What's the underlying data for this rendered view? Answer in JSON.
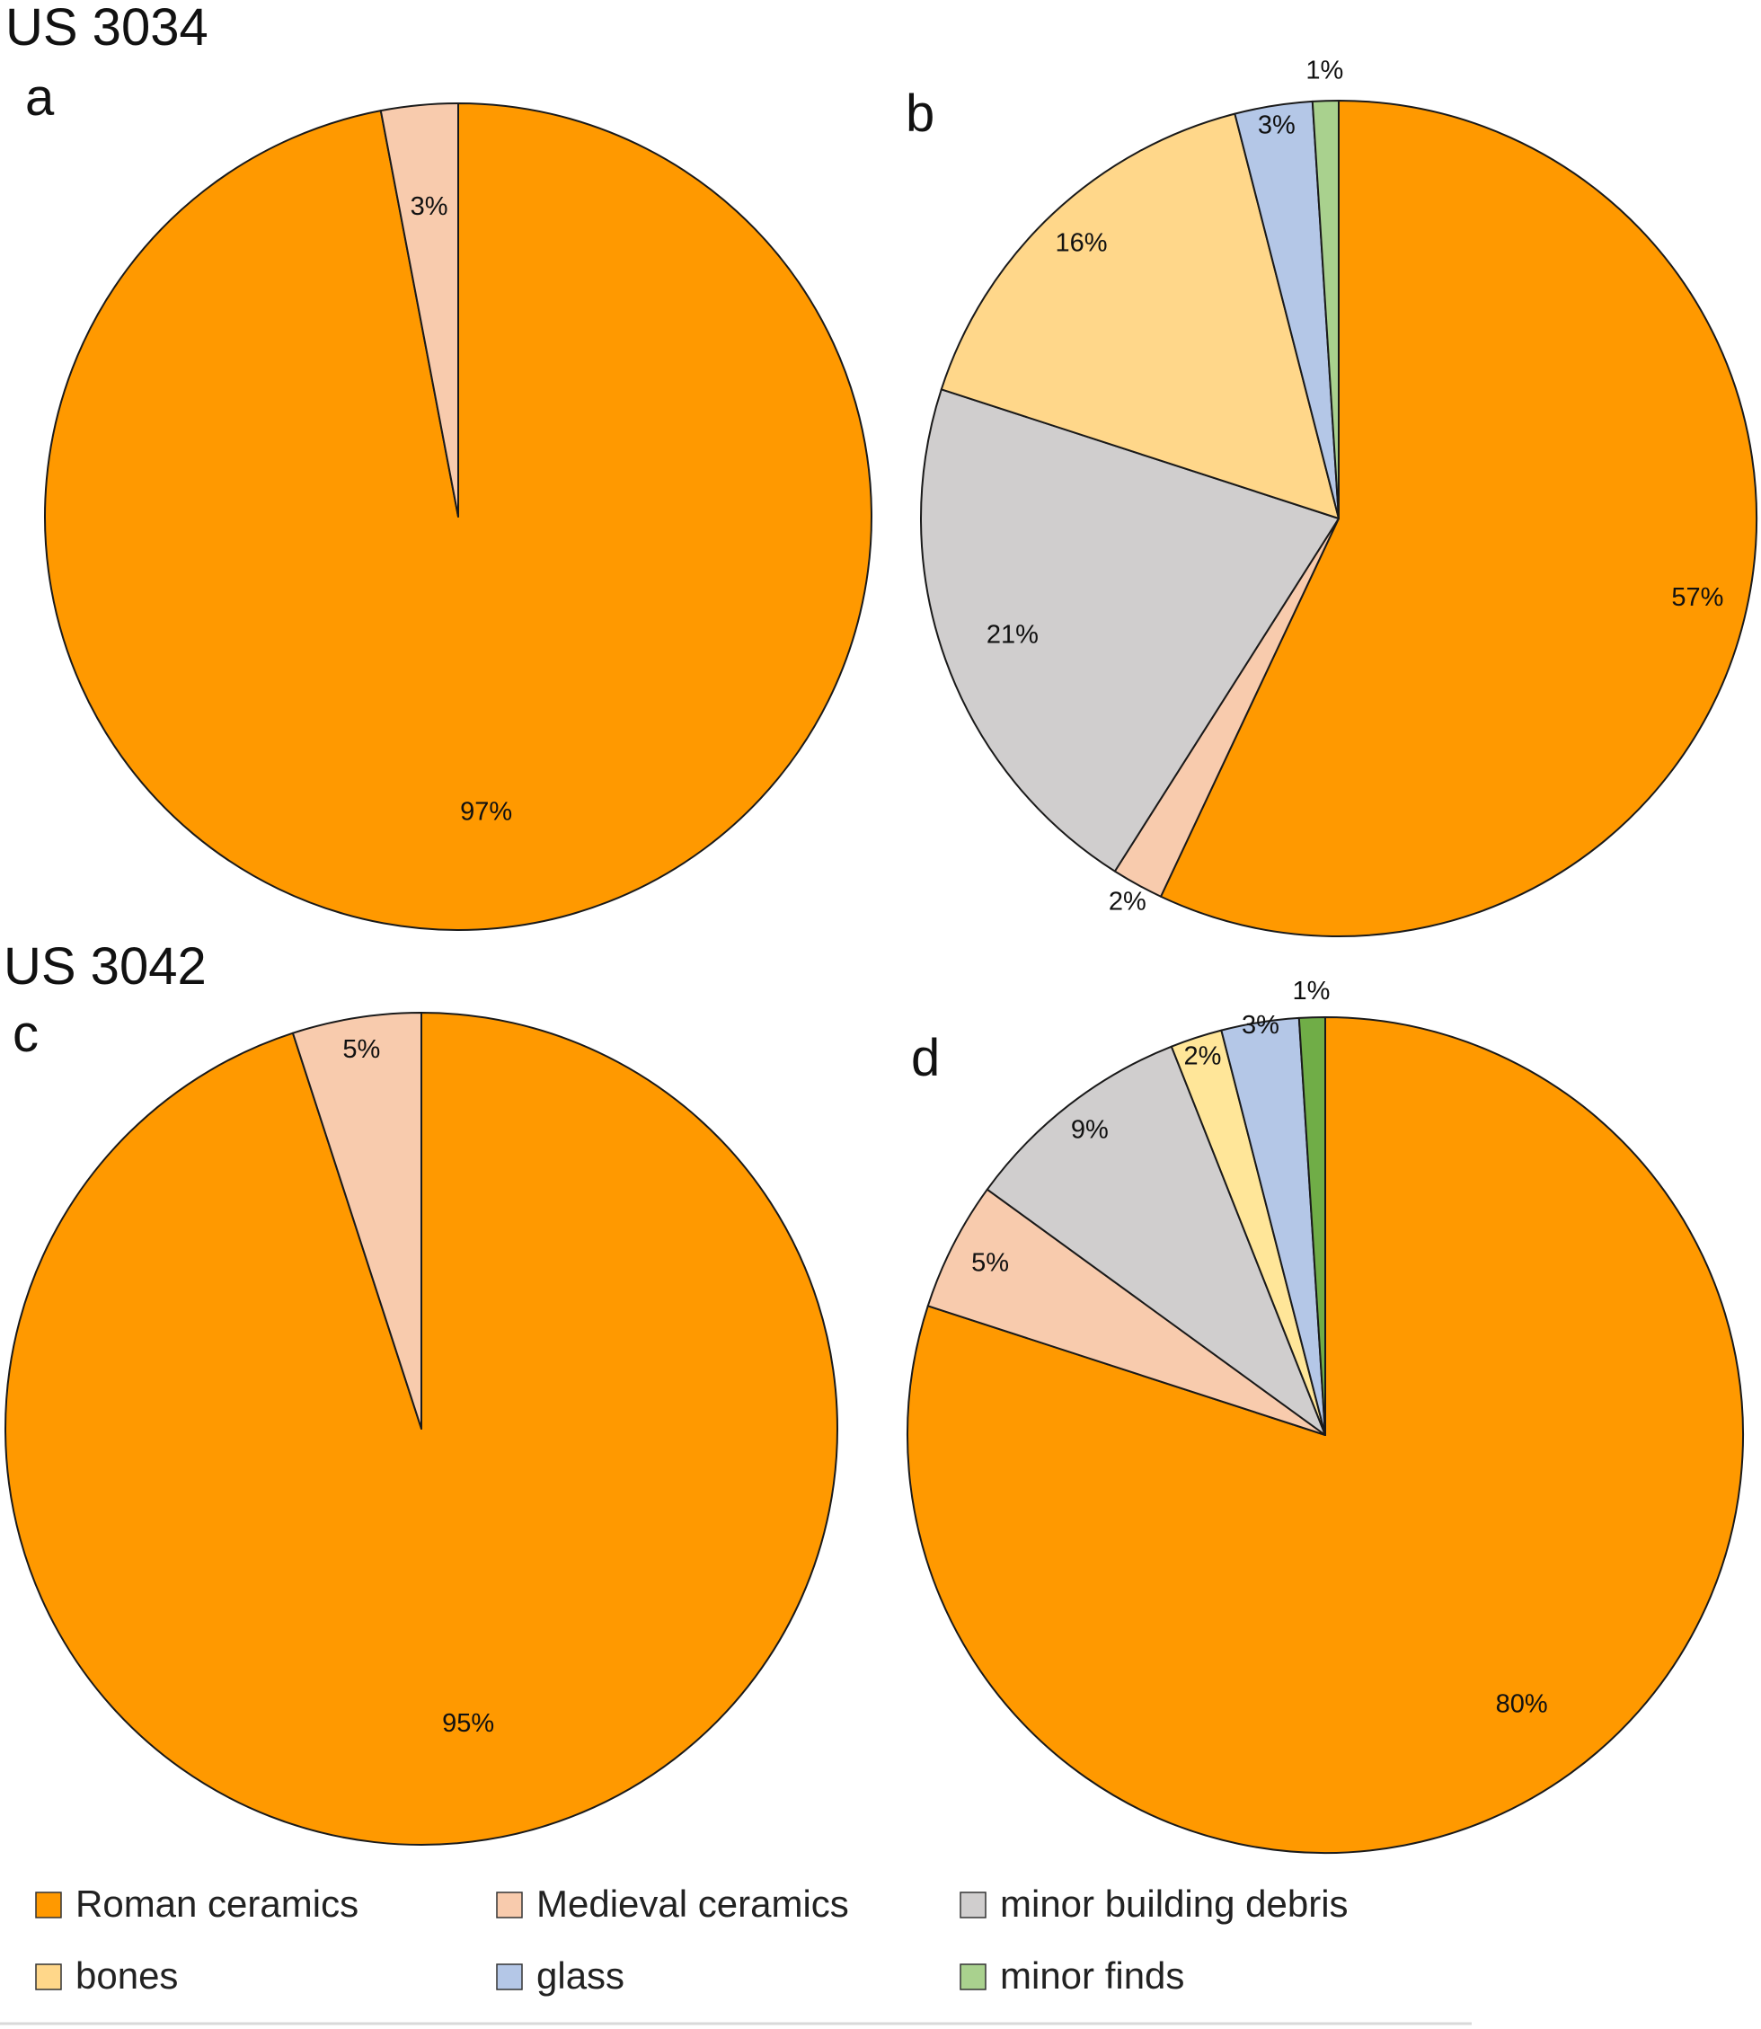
{
  "figure": {
    "section_labels": [
      "US 3034",
      "US 3042"
    ]
  },
  "legend": [
    {
      "label": "Roman ceramics",
      "color": "#FF9900"
    },
    {
      "label": "Medieval ceramics",
      "color": "#F8CBAD"
    },
    {
      "label": "minor building debris",
      "color": "#D0CECE"
    },
    {
      "label": "bones",
      "color": "#FFD78A"
    },
    {
      "label": "glass",
      "color": "#B4C7E7"
    },
    {
      "label": "minor finds",
      "color": "#A9D18E"
    }
  ],
  "chart_data": [
    {
      "type": "pie",
      "panel": "a",
      "section": "US 3034",
      "slices": [
        {
          "category": "Roman ceramics",
          "value": 97,
          "label": "97%",
          "color": "#FF9900"
        },
        {
          "category": "Medieval ceramics",
          "value": 3,
          "label": "3%",
          "color": "#F8CBAD"
        }
      ]
    },
    {
      "type": "pie",
      "panel": "b",
      "section": "US 3034",
      "slices": [
        {
          "category": "Roman ceramics",
          "value": 57,
          "label": "57%",
          "color": "#FF9900"
        },
        {
          "category": "Medieval ceramics",
          "value": 2,
          "label": "2%",
          "color": "#F8CBAD"
        },
        {
          "category": "minor building debris",
          "value": 21,
          "label": "21%",
          "color": "#D0CECE"
        },
        {
          "category": "bones",
          "value": 16,
          "label": "16%",
          "color": "#FFD78A"
        },
        {
          "category": "glass",
          "value": 3,
          "label": "3%",
          "color": "#B4C7E7"
        },
        {
          "category": "minor finds",
          "value": 1,
          "label": "1%",
          "color": "#A9D18E"
        }
      ]
    },
    {
      "type": "pie",
      "panel": "c",
      "section": "US 3042",
      "slices": [
        {
          "category": "Roman ceramics",
          "value": 95,
          "label": "95%",
          "color": "#FF9900"
        },
        {
          "category": "Medieval ceramics",
          "value": 5,
          "label": "5%",
          "color": "#F8CBAD"
        }
      ]
    },
    {
      "type": "pie",
      "panel": "d",
      "section": "US 3042",
      "slices": [
        {
          "category": "Roman ceramics",
          "value": 80,
          "label": "80%",
          "color": "#FF9900"
        },
        {
          "category": "Medieval ceramics",
          "value": 5,
          "label": "5%",
          "color": "#F8CBAD"
        },
        {
          "category": "minor building debris",
          "value": 9,
          "label": "9%",
          "color": "#D0CECE"
        },
        {
          "category": "bones",
          "value": 2,
          "label": "2%",
          "color": "#FFE699"
        },
        {
          "category": "glass",
          "value": 3,
          "label": "3%",
          "color": "#B4C7E7"
        },
        {
          "category": "minor finds",
          "value": 1,
          "label": "1%",
          "color": "#70AD47"
        }
      ]
    }
  ]
}
